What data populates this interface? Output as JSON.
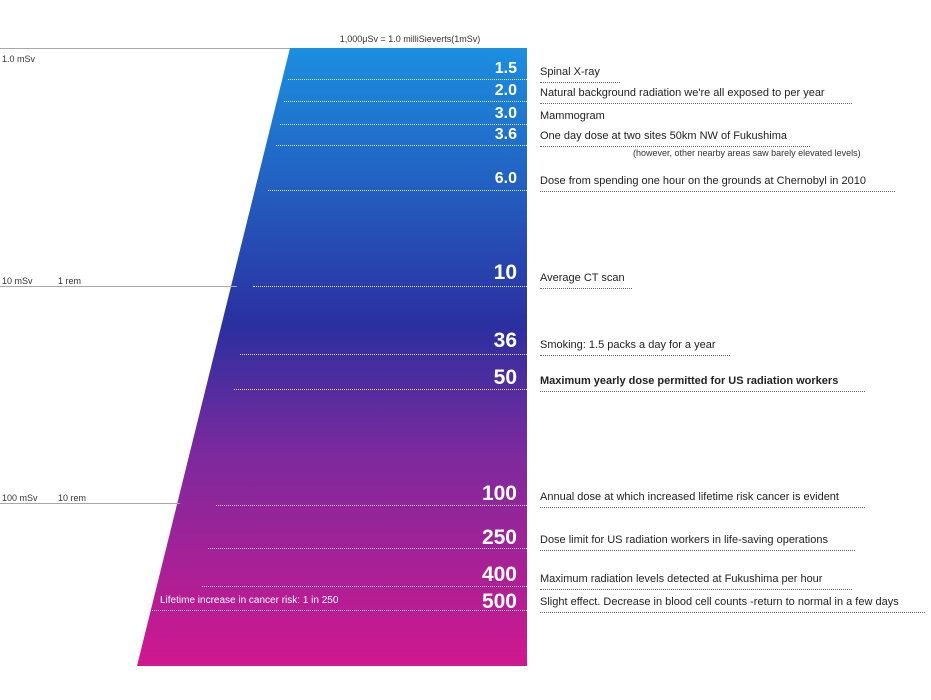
{
  "header": "1,000μSv = 1.0 milliSieverts(1mSv)",
  "scale_labels": [
    {
      "msv": "1.0 mSv",
      "rem": ""
    },
    {
      "msv": "10 mSv",
      "rem": "1 rem"
    },
    {
      "msv": "100 mSv",
      "rem": "10 rem"
    }
  ],
  "levels": [
    {
      "value": "1.5",
      "label": "Spinal X-ray"
    },
    {
      "value": "2.0",
      "label": "Natural background radiation we're all exposed to per year"
    },
    {
      "value": "3.0",
      "label": "Mammogram"
    },
    {
      "value": "3.6",
      "label": "One day dose at two sites 50km NW of Fukushima"
    },
    {
      "value": "6.0",
      "label": "Dose from spending one hour on the grounds at Chernobyl in 2010"
    },
    {
      "value": "10",
      "label": "Average CT scan"
    },
    {
      "value": "36",
      "label": "Smoking: 1.5 packs a day for a year"
    },
    {
      "value": "50",
      "label": "Maximum yearly dose permitted for US radiation workers"
    },
    {
      "value": "100",
      "label": "Annual dose at which increased lifetime risk cancer is evident"
    },
    {
      "value": "250",
      "label": "Dose limit for US radiation workers in life-saving operations"
    },
    {
      "value": "400",
      "label": "Maximum radiation levels detected at Fukushima per hour"
    },
    {
      "value": "500",
      "label": "Slight effect. Decrease in blood cell counts -return to normal in a few days"
    }
  ],
  "fukushima_note": "(however, other nearby areas saw barely elevated levels)",
  "cancer_risk": "Lifetime increase in cancer risk: 1 in 250",
  "gradient_colors": [
    "#1b8fe0",
    "#2b2fa0",
    "#7a2a9e",
    "#d0188f"
  ]
}
